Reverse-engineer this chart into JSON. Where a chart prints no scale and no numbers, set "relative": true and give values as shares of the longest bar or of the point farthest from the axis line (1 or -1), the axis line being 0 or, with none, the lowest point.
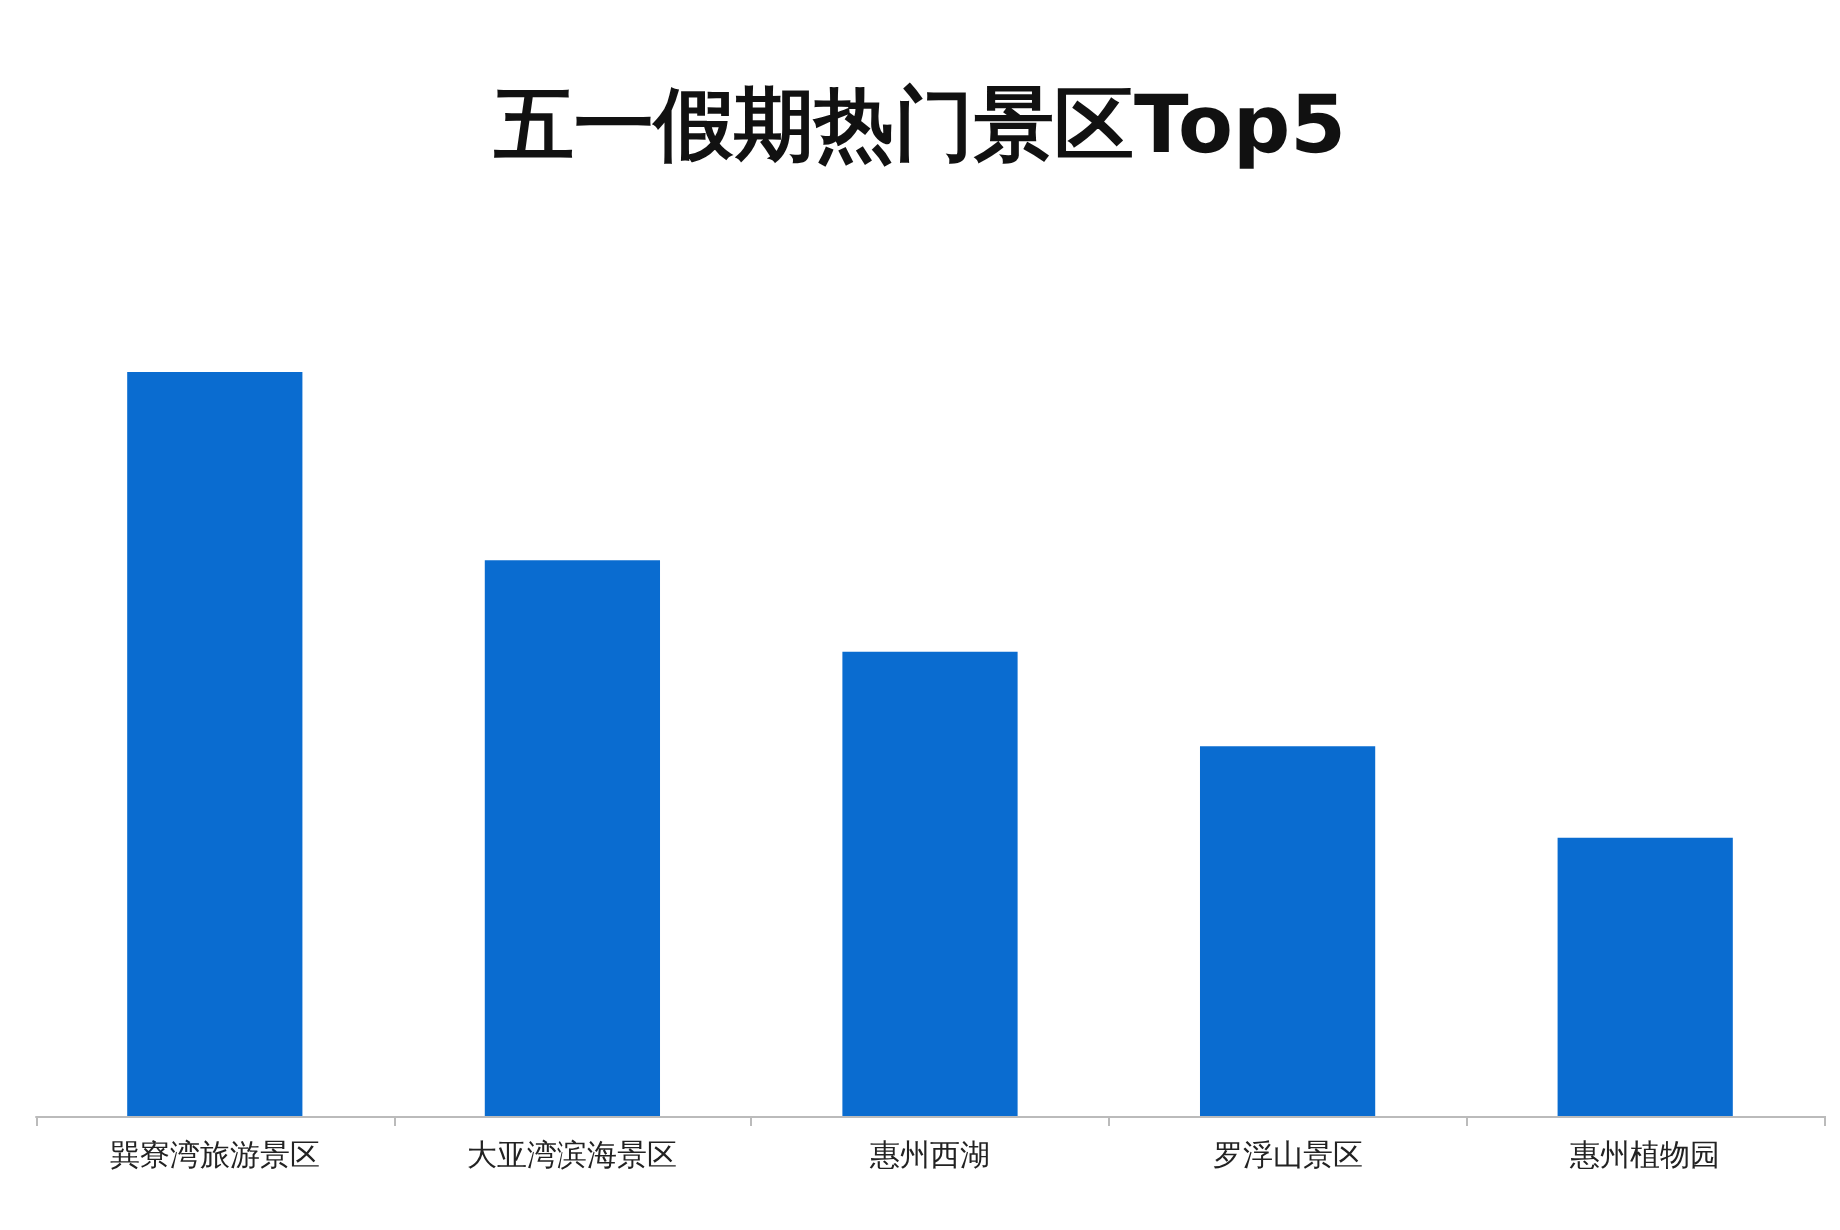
{
  "chart_data": {
    "type": "bar",
    "title": "五一假期热门景区Top5",
    "categories": [
      "巽寮湾旅游景区",
      "大亚湾滨海景区",
      "惠州西湖",
      "罗浮山景区",
      "惠州植物园"
    ],
    "values": [
      1,
      0.747,
      0.624,
      0.497,
      0.374
    ],
    "color": "#0a6cd0",
    "relative": true
  }
}
